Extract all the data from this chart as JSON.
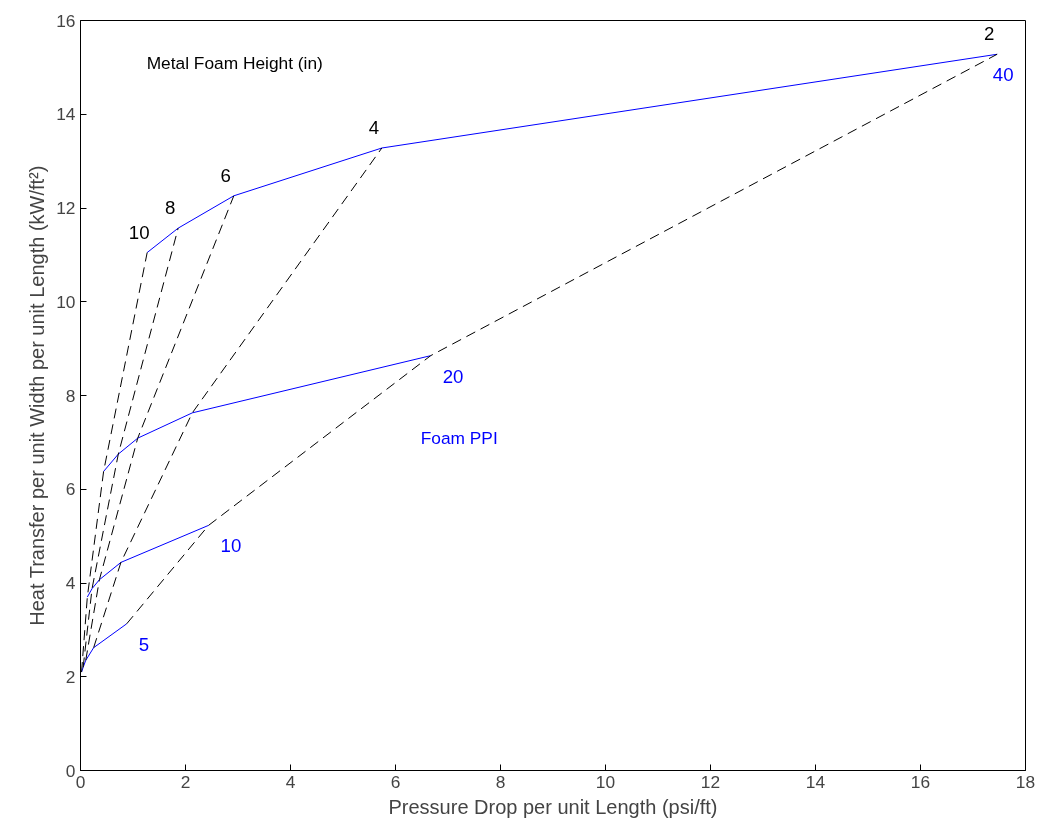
{
  "chart_data": {
    "type": "line",
    "xlabel": "Pressure Drop per unit Length (psi/ft)",
    "ylabel": "Heat Transfer per unit Width per unit Length (kW/ft²)",
    "xlim": [
      0,
      18
    ],
    "ylim": [
      0,
      16
    ],
    "xticks": [
      0,
      2,
      4,
      6,
      8,
      10,
      12,
      14,
      16,
      18
    ],
    "yticks": [
      0,
      2,
      4,
      6,
      8,
      10,
      12,
      14,
      16
    ],
    "grid": false,
    "marker": "none",
    "annotations": [
      "Metal Foam Height (in)",
      "Foam PPI"
    ],
    "series": [
      {
        "name": "5",
        "color": "#0000ff",
        "line_style": "solid",
        "x": [
          0.02,
          0.05,
          0.1,
          0.25,
          0.88
        ],
        "values": [
          2.1,
          2.2,
          2.35,
          2.62,
          3.13
        ]
      },
      {
        "name": "10",
        "color": "#0000ff",
        "line_style": "solid",
        "x": [
          0.13,
          0.22,
          0.36,
          0.77,
          2.44
        ],
        "values": [
          3.7,
          3.88,
          4.07,
          4.44,
          5.23
        ]
      },
      {
        "name": "20",
        "color": "#0000ff",
        "line_style": "solid",
        "x": [
          0.44,
          0.72,
          1.09,
          2.13,
          6.67
        ],
        "values": [
          6.38,
          6.75,
          7.09,
          7.63,
          8.85
        ]
      },
      {
        "name": "40",
        "color": "#0000ff",
        "line_style": "solid",
        "x": [
          1.27,
          1.86,
          2.92,
          5.74,
          17.46
        ],
        "values": [
          11.05,
          11.57,
          12.26,
          13.28,
          15.28
        ]
      },
      {
        "name": "10",
        "color": "#000000",
        "line_style": "dashed",
        "x": [
          0.02,
          0.13,
          0.44,
          1.27
        ],
        "values": [
          2.1,
          3.7,
          6.38,
          11.05
        ]
      },
      {
        "name": "8",
        "color": "#000000",
        "line_style": "dashed",
        "x": [
          0.05,
          0.22,
          0.72,
          1.86
        ],
        "values": [
          2.2,
          3.88,
          6.75,
          11.57
        ]
      },
      {
        "name": "6",
        "color": "#000000",
        "line_style": "dashed",
        "x": [
          0.1,
          0.36,
          1.09,
          2.92
        ],
        "values": [
          2.35,
          4.07,
          7.09,
          12.26
        ]
      },
      {
        "name": "4",
        "color": "#000000",
        "line_style": "dashed",
        "x": [
          0.25,
          0.77,
          2.13,
          5.74
        ],
        "values": [
          2.62,
          4.44,
          7.63,
          13.28
        ]
      },
      {
        "name": "2",
        "color": "#000000",
        "line_style": "dashed",
        "x": [
          0.88,
          2.44,
          6.67,
          17.46
        ],
        "values": [
          3.13,
          5.23,
          8.85,
          15.28
        ]
      }
    ]
  }
}
